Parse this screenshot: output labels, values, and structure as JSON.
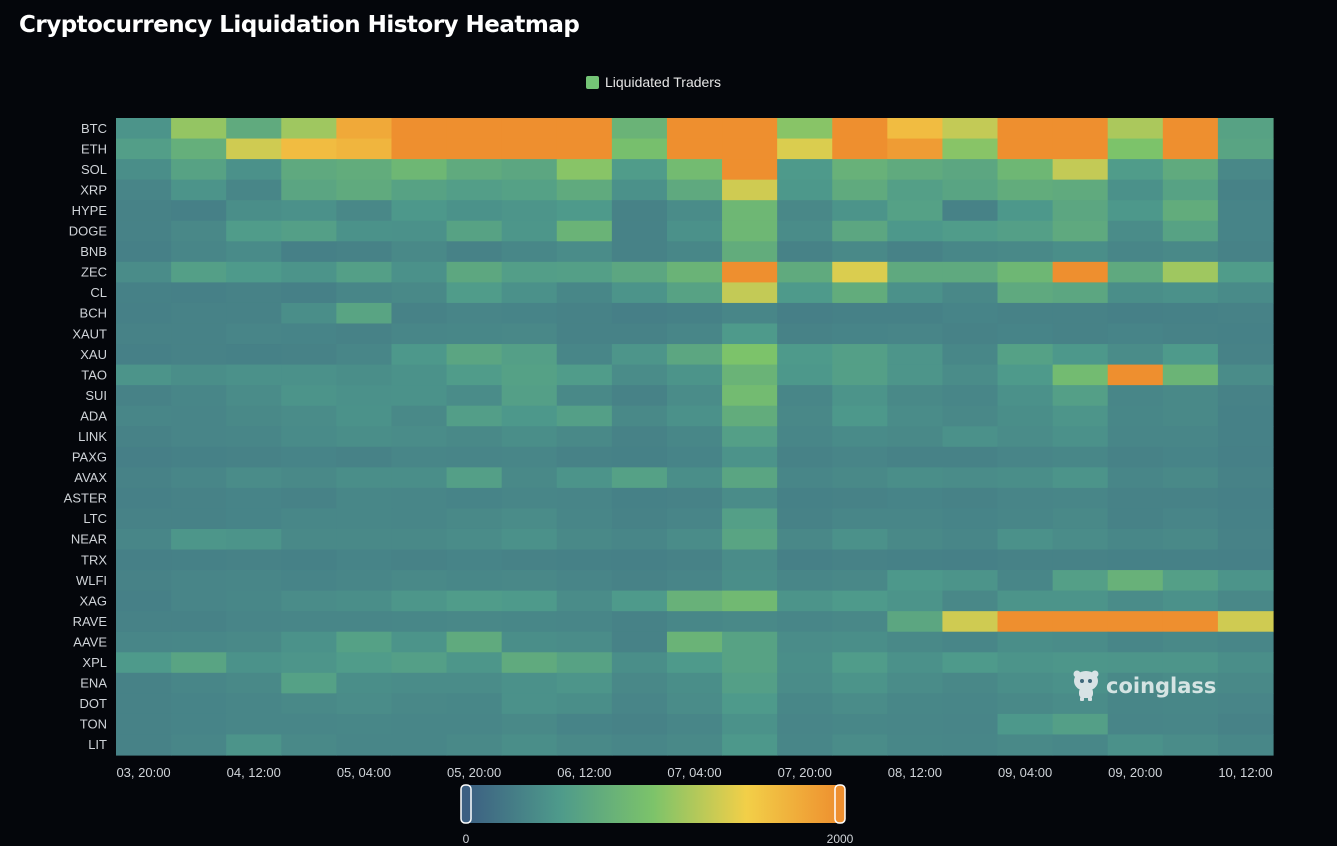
{
  "page": {
    "title": "Cryptocurrency Liquidation History Heatmap"
  },
  "legend": {
    "label": "Liquidated Traders",
    "color": "#74c476"
  },
  "watermark": {
    "text": "coinglass"
  },
  "visual_map": {
    "min_label": "0",
    "max_label": "2000",
    "colors": [
      "#3c5f82",
      "#4e9a8b",
      "#7cc36a",
      "#f2cf48",
      "#ee8f2f"
    ]
  },
  "chart_data": {
    "type": "heatmap",
    "title": "Cryptocurrency Liquidation History Heatmap",
    "series_name": "Liquidated Traders",
    "value_range": [
      0,
      2000
    ],
    "x_tick_labels": [
      "03, 20:00",
      "04, 12:00",
      "05, 04:00",
      "05, 20:00",
      "06, 12:00",
      "07, 04:00",
      "07, 20:00",
      "08, 12:00",
      "09, 04:00",
      "09, 20:00",
      "10, 12:00"
    ],
    "x_tick_every": 2,
    "rows": [
      "BTC",
      "ETH",
      "SOL",
      "XRP",
      "HYPE",
      "DOGE",
      "BNB",
      "ZEC",
      "CL",
      "BCH",
      "XAUT",
      "XAU",
      "TAO",
      "SUI",
      "ADA",
      "LINK",
      "PAXG",
      "AVAX",
      "ASTER",
      "LTC",
      "NEAR",
      "TRX",
      "WLFI",
      "XAG",
      "RAVE",
      "AAVE",
      "XPL",
      "ENA",
      "DOT",
      "TON",
      "LIT"
    ],
    "values": [
      [
        450,
        1100,
        700,
        1150,
        1800,
        2000,
        2000,
        2000,
        2000,
        800,
        2000,
        2000,
        1050,
        2000,
        1650,
        1300,
        2000,
        2000,
        1200,
        2000,
        600
      ],
      [
        550,
        750,
        1350,
        1650,
        1700,
        2000,
        2000,
        2000,
        2000,
        950,
        2000,
        2000,
        1400,
        2000,
        1900,
        1050,
        2000,
        2000,
        1000,
        2000,
        620
      ],
      [
        400,
        600,
        420,
        680,
        720,
        850,
        700,
        650,
        1050,
        520,
        900,
        2000,
        500,
        780,
        700,
        650,
        850,
        1300,
        520,
        700,
        350
      ],
      [
        320,
        450,
        330,
        640,
        700,
        600,
        550,
        580,
        700,
        420,
        680,
        1350,
        480,
        700,
        560,
        620,
        720,
        700,
        420,
        600,
        300
      ],
      [
        300,
        280,
        400,
        420,
        350,
        480,
        430,
        460,
        500,
        300,
        380,
        850,
        350,
        450,
        580,
        300,
        480,
        650,
        480,
        720,
        310
      ],
      [
        300,
        350,
        520,
        560,
        430,
        420,
        600,
        470,
        800,
        300,
        420,
        850,
        380,
        650,
        480,
        520,
        560,
        680,
        380,
        600,
        310
      ],
      [
        280,
        330,
        370,
        280,
        300,
        360,
        300,
        340,
        380,
        300,
        340,
        720,
        300,
        360,
        300,
        340,
        360,
        400,
        330,
        360,
        300
      ],
      [
        380,
        560,
        500,
        450,
        560,
        420,
        660,
        550,
        560,
        650,
        800,
        2000,
        700,
        1400,
        680,
        680,
        850,
        2000,
        680,
        1150,
        520
      ],
      [
        290,
        280,
        300,
        280,
        330,
        360,
        520,
        420,
        340,
        450,
        600,
        1300,
        500,
        720,
        420,
        350,
        680,
        650,
        400,
        420,
        370
      ],
      [
        280,
        300,
        300,
        400,
        620,
        300,
        320,
        310,
        300,
        270,
        290,
        330,
        270,
        290,
        290,
        310,
        300,
        300,
        280,
        290,
        300
      ],
      [
        300,
        300,
        320,
        310,
        300,
        330,
        340,
        350,
        300,
        300,
        330,
        500,
        300,
        310,
        320,
        300,
        310,
        300,
        310,
        300,
        290
      ],
      [
        280,
        300,
        290,
        300,
        330,
        480,
        640,
        560,
        330,
        460,
        650,
        1000,
        500,
        560,
        460,
        340,
        580,
        480,
        380,
        500,
        300
      ],
      [
        450,
        400,
        420,
        420,
        400,
        430,
        520,
        580,
        520,
        380,
        450,
        800,
        480,
        560,
        460,
        380,
        500,
        900,
        2000,
        820,
        380
      ],
      [
        300,
        330,
        380,
        450,
        420,
        430,
        380,
        560,
        360,
        300,
        380,
        900,
        330,
        450,
        360,
        330,
        420,
        560,
        330,
        360,
        300
      ],
      [
        330,
        320,
        360,
        380,
        430,
        360,
        550,
        480,
        560,
        360,
        420,
        720,
        350,
        480,
        380,
        350,
        400,
        460,
        340,
        360,
        290
      ],
      [
        300,
        320,
        330,
        370,
        400,
        380,
        360,
        400,
        360,
        300,
        340,
        560,
        330,
        370,
        360,
        420,
        380,
        420,
        330,
        330,
        290
      ],
      [
        270,
        290,
        300,
        310,
        300,
        330,
        320,
        330,
        300,
        290,
        310,
        440,
        300,
        320,
        300,
        300,
        320,
        340,
        300,
        310,
        280
      ],
      [
        300,
        330,
        380,
        360,
        400,
        400,
        560,
        360,
        450,
        580,
        400,
        630,
        330,
        360,
        400,
        380,
        400,
        450,
        330,
        360,
        300
      ],
      [
        280,
        300,
        310,
        300,
        340,
        330,
        310,
        330,
        320,
        290,
        300,
        380,
        290,
        300,
        310,
        300,
        320,
        330,
        300,
        300,
        280
      ],
      [
        300,
        300,
        310,
        340,
        340,
        330,
        360,
        380,
        330,
        300,
        320,
        560,
        300,
        330,
        330,
        310,
        330,
        360,
        300,
        320,
        290
      ],
      [
        330,
        470,
        450,
        360,
        360,
        360,
        380,
        420,
        360,
        330,
        380,
        620,
        350,
        420,
        360,
        330,
        420,
        380,
        340,
        360,
        300
      ],
      [
        280,
        290,
        300,
        290,
        310,
        300,
        310,
        300,
        290,
        280,
        300,
        380,
        280,
        300,
        290,
        280,
        300,
        300,
        290,
        290,
        280
      ],
      [
        300,
        320,
        330,
        310,
        330,
        360,
        340,
        350,
        320,
        300,
        320,
        400,
        330,
        350,
        480,
        450,
        330,
        560,
        780,
        560,
        450
      ],
      [
        280,
        320,
        340,
        380,
        400,
        470,
        520,
        500,
        380,
        500,
        780,
        880,
        450,
        500,
        450,
        350,
        450,
        450,
        380,
        420,
        350
      ],
      [
        300,
        300,
        320,
        330,
        330,
        340,
        350,
        340,
        330,
        300,
        340,
        360,
        330,
        350,
        650,
        1350,
        2000,
        2000,
        2000,
        2000,
        1350
      ],
      [
        330,
        340,
        360,
        430,
        580,
        450,
        700,
        400,
        380,
        300,
        800,
        600,
        380,
        400,
        360,
        330,
        400,
        380,
        330,
        360,
        330
      ],
      [
        500,
        620,
        430,
        460,
        520,
        560,
        470,
        700,
        600,
        400,
        500,
        600,
        400,
        520,
        420,
        500,
        450,
        470,
        460,
        460,
        400
      ],
      [
        300,
        330,
        360,
        580,
        400,
        380,
        380,
        420,
        460,
        350,
        400,
        560,
        380,
        450,
        380,
        350,
        400,
        420,
        360,
        380,
        360
      ],
      [
        300,
        310,
        330,
        360,
        380,
        350,
        340,
        420,
        400,
        320,
        380,
        500,
        340,
        380,
        340,
        330,
        360,
        380,
        330,
        340,
        320
      ],
      [
        300,
        310,
        330,
        330,
        340,
        330,
        330,
        360,
        310,
        300,
        330,
        430,
        320,
        340,
        330,
        320,
        480,
        560,
        320,
        330,
        300
      ],
      [
        300,
        330,
        450,
        360,
        330,
        330,
        360,
        400,
        360,
        330,
        360,
        480,
        330,
        380,
        340,
        330,
        360,
        340,
        420,
        380,
        340
      ]
    ]
  }
}
